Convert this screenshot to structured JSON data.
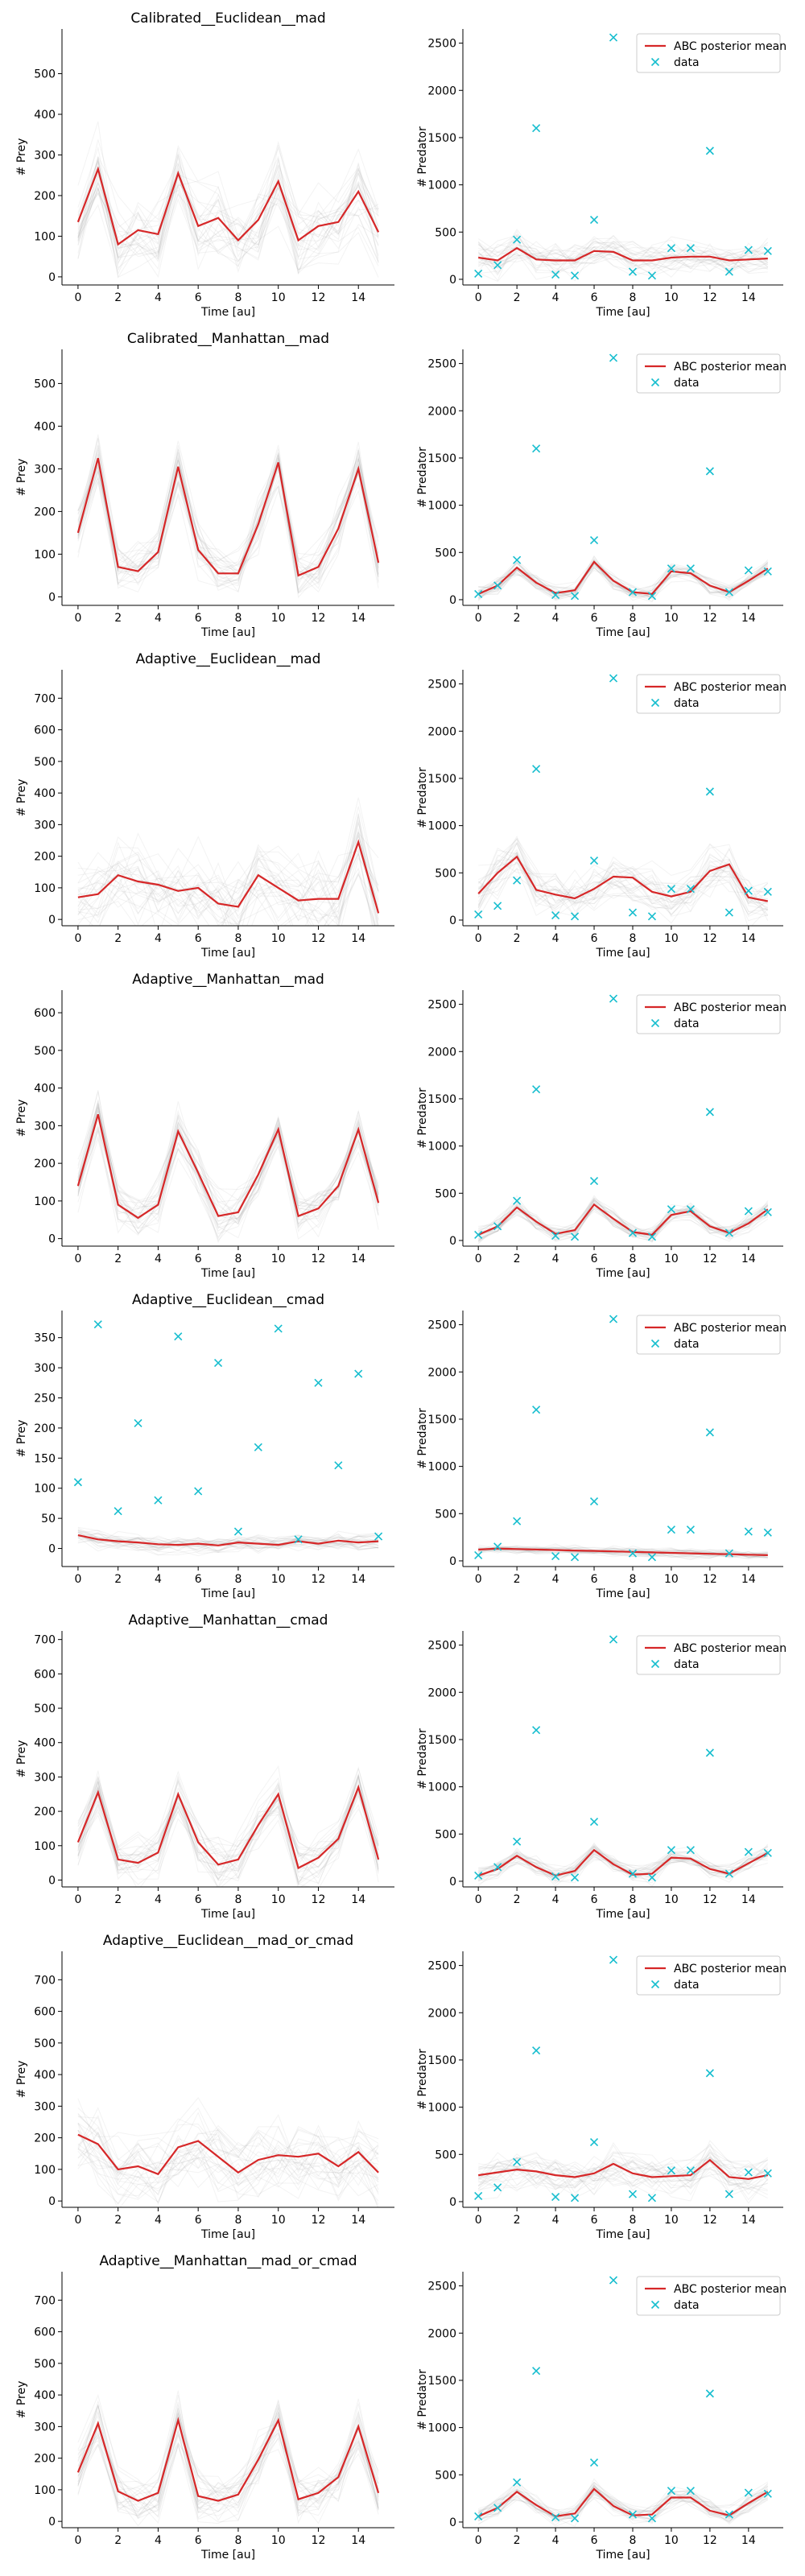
{
  "colors": {
    "mean_line": "#d62728",
    "data_marker": "#17becf",
    "trajectories": "#9e9e9e",
    "legend_border": "#cccccc"
  },
  "chart_data": [
    {
      "type": "line",
      "title": "Calibrated__Euclidean__mad",
      "xlabel": "Time [au]",
      "ylabel": "# Prey",
      "xlim": [
        -0.8,
        15.8
      ],
      "ylim": [
        -20,
        610
      ],
      "xticks": [
        0,
        2,
        4,
        6,
        8,
        10,
        12,
        14
      ],
      "yticks": [
        0,
        100,
        200,
        300,
        400,
        500
      ],
      "spread": 90,
      "legend": null,
      "series": [
        {
          "name": "",
          "kind": "line",
          "values": [
            135,
            265,
            80,
            115,
            105,
            255,
            125,
            145,
            90,
            140,
            235,
            90,
            125,
            135,
            210,
            110
          ]
        }
      ]
    },
    {
      "type": "line",
      "title": "",
      "xlabel": "Time [au]",
      "ylabel": "# Predator",
      "xlim": [
        -0.8,
        15.8
      ],
      "ylim": [
        -60,
        2650
      ],
      "xticks": [
        0,
        2,
        4,
        6,
        8,
        10,
        12,
        14
      ],
      "yticks": [
        0,
        500,
        1000,
        1500,
        2000,
        2500
      ],
      "spread": 180,
      "legend": "upper right",
      "series": [
        {
          "name": "ABC posterior mean",
          "kind": "line",
          "values": [
            230,
            200,
            330,
            210,
            200,
            200,
            300,
            290,
            200,
            200,
            230,
            240,
            240,
            200,
            210,
            220
          ]
        },
        {
          "name": "data",
          "kind": "marker",
          "values": [
            60,
            150,
            420,
            1600,
            50,
            40,
            630,
            2560,
            80,
            40,
            330,
            330,
            1360,
            80,
            310,
            300
          ]
        }
      ]
    },
    {
      "type": "line",
      "title": "Calibrated__Manhattan__mad",
      "xlabel": "Time [au]",
      "ylabel": "# Prey",
      "xlim": [
        -0.8,
        15.8
      ],
      "ylim": [
        -20,
        580
      ],
      "xticks": [
        0,
        2,
        4,
        6,
        8,
        10,
        12,
        14
      ],
      "yticks": [
        0,
        100,
        200,
        300,
        400,
        500
      ],
      "spread": 60,
      "legend": null,
      "series": [
        {
          "name": "",
          "kind": "line",
          "values": [
            150,
            325,
            70,
            60,
            105,
            305,
            110,
            55,
            55,
            170,
            315,
            50,
            70,
            160,
            300,
            80
          ]
        }
      ]
    },
    {
      "type": "line",
      "title": "",
      "xlabel": "Time [au]",
      "ylabel": "# Predator",
      "xlim": [
        -0.8,
        15.8
      ],
      "ylim": [
        -60,
        2650
      ],
      "xticks": [
        0,
        2,
        4,
        6,
        8,
        10,
        12,
        14
      ],
      "yticks": [
        0,
        500,
        1000,
        1500,
        2000,
        2500
      ],
      "spread": 90,
      "legend": "upper right",
      "series": [
        {
          "name": "ABC posterior mean",
          "kind": "line",
          "values": [
            60,
            150,
            340,
            180,
            70,
            100,
            400,
            200,
            80,
            60,
            300,
            280,
            150,
            80,
            200,
            330
          ]
        },
        {
          "name": "data",
          "kind": "marker",
          "values": [
            60,
            150,
            420,
            1600,
            50,
            40,
            630,
            2560,
            80,
            40,
            330,
            330,
            1360,
            80,
            310,
            300
          ]
        }
      ]
    },
    {
      "type": "line",
      "title": "Adaptive__Euclidean__mad",
      "xlabel": "Time [au]",
      "ylabel": "# Prey",
      "xlim": [
        -0.8,
        15.8
      ],
      "ylim": [
        -20,
        790
      ],
      "xticks": [
        0,
        2,
        4,
        6,
        8,
        10,
        12,
        14
      ],
      "yticks": [
        0,
        100,
        200,
        300,
        400,
        500,
        600,
        700
      ],
      "spread": 130,
      "legend": null,
      "series": [
        {
          "name": "",
          "kind": "line",
          "values": [
            70,
            80,
            140,
            120,
            110,
            90,
            100,
            50,
            40,
            140,
            100,
            60,
            65,
            65,
            245,
            20
          ]
        }
      ]
    },
    {
      "type": "line",
      "title": "",
      "xlabel": "Time [au]",
      "ylabel": "# Predator",
      "xlim": [
        -0.8,
        15.8
      ],
      "ylim": [
        -60,
        2650
      ],
      "xticks": [
        0,
        2,
        4,
        6,
        8,
        10,
        12,
        14
      ],
      "yticks": [
        0,
        500,
        1000,
        1500,
        2000,
        2500
      ],
      "spread": 260,
      "legend": "upper right",
      "series": [
        {
          "name": "ABC posterior mean",
          "kind": "line",
          "values": [
            280,
            500,
            670,
            320,
            270,
            230,
            330,
            460,
            450,
            300,
            250,
            300,
            520,
            590,
            240,
            200
          ]
        },
        {
          "name": "data",
          "kind": "marker",
          "values": [
            60,
            150,
            420,
            1600,
            50,
            40,
            630,
            2560,
            80,
            40,
            330,
            330,
            1360,
            80,
            310,
            300
          ]
        }
      ]
    },
    {
      "type": "line",
      "title": "Adaptive__Manhattan__mad",
      "xlabel": "Time [au]",
      "ylabel": "# Prey",
      "xlim": [
        -0.8,
        15.8
      ],
      "ylim": [
        -20,
        660
      ],
      "xticks": [
        0,
        2,
        4,
        6,
        8,
        10,
        12,
        14
      ],
      "yticks": [
        0,
        100,
        200,
        300,
        400,
        500,
        600
      ],
      "spread": 60,
      "legend": null,
      "series": [
        {
          "name": "",
          "kind": "line",
          "values": [
            140,
            330,
            90,
            55,
            90,
            285,
            175,
            60,
            70,
            170,
            290,
            60,
            80,
            140,
            290,
            95
          ]
        }
      ]
    },
    {
      "type": "line",
      "title": "",
      "xlabel": "Time [au]",
      "ylabel": "# Predator",
      "xlim": [
        -0.8,
        15.8
      ],
      "ylim": [
        -60,
        2650
      ],
      "xticks": [
        0,
        2,
        4,
        6,
        8,
        10,
        12,
        14
      ],
      "yticks": [
        0,
        500,
        1000,
        1500,
        2000,
        2500
      ],
      "spread": 90,
      "legend": "upper right",
      "series": [
        {
          "name": "ABC posterior mean",
          "kind": "line",
          "values": [
            60,
            150,
            350,
            200,
            70,
            110,
            380,
            230,
            90,
            60,
            270,
            310,
            150,
            80,
            180,
            330
          ]
        },
        {
          "name": "data",
          "kind": "marker",
          "values": [
            60,
            150,
            420,
            1600,
            50,
            40,
            630,
            2560,
            80,
            40,
            330,
            330,
            1360,
            80,
            310,
            300
          ]
        }
      ]
    },
    {
      "type": "line",
      "title": "Adaptive__Euclidean__cmad",
      "xlabel": "Time [au]",
      "ylabel": "# Prey",
      "xlim": [
        -0.8,
        15.8
      ],
      "ylim": [
        -30,
        395
      ],
      "xticks": [
        0,
        2,
        4,
        6,
        8,
        10,
        12,
        14
      ],
      "yticks": [
        0,
        50,
        100,
        150,
        200,
        250,
        300,
        350
      ],
      "spread": 15,
      "legend": null,
      "series": [
        {
          "name": "",
          "kind": "line",
          "values": [
            22,
            15,
            12,
            10,
            7,
            6,
            8,
            5,
            10,
            8,
            6,
            12,
            8,
            13,
            10,
            12
          ]
        },
        {
          "name": "",
          "kind": "marker",
          "values": [
            110,
            372,
            62,
            208,
            80,
            352,
            95,
            308,
            28,
            168,
            365,
            15,
            275,
            138,
            290,
            20
          ]
        }
      ]
    },
    {
      "type": "line",
      "title": "",
      "xlabel": "Time [au]",
      "ylabel": "# Predator",
      "xlim": [
        -0.8,
        15.8
      ],
      "ylim": [
        -60,
        2650
      ],
      "xticks": [
        0,
        2,
        4,
        6,
        8,
        10,
        12,
        14
      ],
      "yticks": [
        0,
        500,
        1000,
        1500,
        2000,
        2500
      ],
      "spread": 50,
      "legend": "upper right",
      "series": [
        {
          "name": "ABC posterior mean",
          "kind": "line",
          "values": [
            120,
            130,
            125,
            120,
            115,
            110,
            105,
            100,
            95,
            90,
            85,
            80,
            75,
            70,
            65,
            60
          ]
        },
        {
          "name": "data",
          "kind": "marker",
          "values": [
            60,
            150,
            420,
            1600,
            50,
            40,
            630,
            2560,
            80,
            40,
            330,
            330,
            1360,
            80,
            310,
            300
          ]
        }
      ]
    },
    {
      "type": "line",
      "title": "Adaptive__Manhattan__cmad",
      "xlabel": "Time [au]",
      "ylabel": "# Prey",
      "xlim": [
        -0.8,
        15.8
      ],
      "ylim": [
        -20,
        725
      ],
      "xticks": [
        0,
        2,
        4,
        6,
        8,
        10,
        12,
        14
      ],
      "yticks": [
        0,
        100,
        200,
        300,
        400,
        500,
        600,
        700
      ],
      "spread": 70,
      "legend": null,
      "series": [
        {
          "name": "",
          "kind": "line",
          "values": [
            110,
            255,
            60,
            50,
            80,
            250,
            110,
            45,
            60,
            160,
            250,
            35,
            65,
            120,
            270,
            60
          ]
        }
      ]
    },
    {
      "type": "line",
      "title": "",
      "xlabel": "Time [au]",
      "ylabel": "# Predator",
      "xlim": [
        -0.8,
        15.8
      ],
      "ylim": [
        -60,
        2650
      ],
      "xticks": [
        0,
        2,
        4,
        6,
        8,
        10,
        12,
        14
      ],
      "yticks": [
        0,
        500,
        1000,
        1500,
        2000,
        2500
      ],
      "spread": 100,
      "legend": "upper right",
      "series": [
        {
          "name": "ABC posterior mean",
          "kind": "line",
          "values": [
            60,
            130,
            270,
            150,
            60,
            110,
            330,
            180,
            70,
            80,
            250,
            240,
            130,
            80,
            190,
            300
          ]
        },
        {
          "name": "data",
          "kind": "marker",
          "values": [
            60,
            150,
            420,
            1600,
            50,
            40,
            630,
            2560,
            80,
            40,
            330,
            330,
            1360,
            80,
            310,
            300
          ]
        }
      ]
    },
    {
      "type": "line",
      "title": "Adaptive__Euclidean__mad_or_cmad",
      "xlabel": "Time [au]",
      "ylabel": "# Prey",
      "xlim": [
        -0.8,
        15.8
      ],
      "ylim": [
        -20,
        790
      ],
      "xticks": [
        0,
        2,
        4,
        6,
        8,
        10,
        12,
        14
      ],
      "yticks": [
        0,
        100,
        200,
        300,
        400,
        500,
        600,
        700
      ],
      "spread": 120,
      "legend": null,
      "series": [
        {
          "name": "",
          "kind": "line",
          "values": [
            210,
            180,
            100,
            110,
            85,
            170,
            190,
            140,
            90,
            130,
            145,
            140,
            150,
            110,
            155,
            90
          ]
        }
      ]
    },
    {
      "type": "line",
      "title": "",
      "xlabel": "Time [au]",
      "ylabel": "# Predator",
      "xlim": [
        -0.8,
        15.8
      ],
      "ylim": [
        -60,
        2650
      ],
      "xticks": [
        0,
        2,
        4,
        6,
        8,
        10,
        12,
        14
      ],
      "yticks": [
        0,
        500,
        1000,
        1500,
        2000,
        2500
      ],
      "spread": 220,
      "legend": "upper right",
      "series": [
        {
          "name": "ABC posterior mean",
          "kind": "line",
          "values": [
            280,
            310,
            340,
            320,
            280,
            260,
            300,
            400,
            300,
            260,
            270,
            280,
            440,
            260,
            240,
            280
          ]
        },
        {
          "name": "data",
          "kind": "marker",
          "values": [
            60,
            150,
            420,
            1600,
            50,
            40,
            630,
            2560,
            80,
            40,
            330,
            330,
            1360,
            80,
            310,
            300
          ]
        }
      ]
    },
    {
      "type": "line",
      "title": "Adaptive__Manhattan__mad_or_cmad",
      "xlabel": "Time [au]",
      "ylabel": "# Prey",
      "xlim": [
        -0.8,
        15.8
      ],
      "ylim": [
        -20,
        790
      ],
      "xticks": [
        0,
        2,
        4,
        6,
        8,
        10,
        12,
        14
      ],
      "yticks": [
        0,
        100,
        200,
        300,
        400,
        500,
        600,
        700
      ],
      "spread": 80,
      "legend": null,
      "series": [
        {
          "name": "",
          "kind": "line",
          "values": [
            155,
            310,
            95,
            65,
            90,
            320,
            80,
            65,
            85,
            195,
            320,
            70,
            90,
            140,
            300,
            90
          ]
        }
      ]
    },
    {
      "type": "line",
      "title": "",
      "xlabel": "Time [au]",
      "ylabel": "# Predator",
      "xlim": [
        -0.8,
        15.8
      ],
      "ylim": [
        -60,
        2650
      ],
      "xticks": [
        0,
        2,
        4,
        6,
        8,
        10,
        12,
        14
      ],
      "yticks": [
        0,
        500,
        1000,
        1500,
        2000,
        2500
      ],
      "spread": 100,
      "legend": "upper right",
      "series": [
        {
          "name": "ABC posterior mean",
          "kind": "line",
          "values": [
            60,
            150,
            320,
            180,
            60,
            90,
            350,
            170,
            70,
            80,
            260,
            260,
            120,
            70,
            200,
            320
          ]
        },
        {
          "name": "data",
          "kind": "marker",
          "values": [
            60,
            150,
            420,
            1600,
            50,
            40,
            630,
            2560,
            80,
            40,
            330,
            330,
            1360,
            80,
            310,
            300
          ]
        }
      ]
    }
  ]
}
